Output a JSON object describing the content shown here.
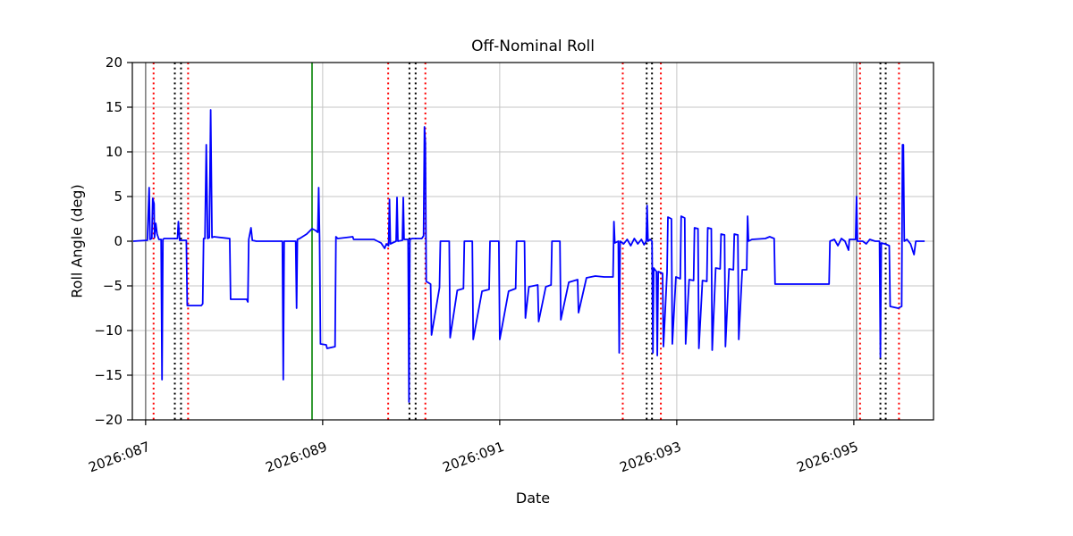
{
  "figure": {
    "title": "Off-Nominal Roll",
    "xlabel": "Date",
    "ylabel": "Roll Angle (deg)"
  },
  "chart_data": {
    "type": "line",
    "title": "Off-Nominal Roll",
    "xlabel": "Date",
    "ylabel": "Roll Angle (deg)",
    "x_unit": "year:day-of-year (2026, decimal days)",
    "xlim": [
      86.85,
      95.9
    ],
    "ylim": [
      -20,
      20
    ],
    "grid": true,
    "grid_color": "#c6c6c6",
    "xticks": [
      {
        "value": 87,
        "label": "2026:087"
      },
      {
        "value": 89,
        "label": "2026:089"
      },
      {
        "value": 91,
        "label": "2026:091"
      },
      {
        "value": 93,
        "label": "2026:093"
      },
      {
        "value": 95,
        "label": "2026:095"
      }
    ],
    "yticks": [
      {
        "value": 20,
        "label": "20"
      },
      {
        "value": 15,
        "label": "15"
      },
      {
        "value": 10,
        "label": "10"
      },
      {
        "value": 5,
        "label": "5"
      },
      {
        "value": 0,
        "label": "0"
      },
      {
        "value": -5,
        "label": "−5"
      },
      {
        "value": -10,
        "label": "−10"
      },
      {
        "value": -15,
        "label": "−15"
      },
      {
        "value": -20,
        "label": "−20"
      }
    ],
    "series": [
      {
        "name": "roll-angle",
        "color": "#0000ff",
        "width": 1.8,
        "points": [
          [
            86.86,
            0
          ],
          [
            87.02,
            0.1
          ],
          [
            87.04,
            6
          ],
          [
            87.05,
            0.2
          ],
          [
            87.07,
            0.3
          ],
          [
            87.08,
            4.8
          ],
          [
            87.095,
            4.2
          ],
          [
            87.1,
            0.4
          ],
          [
            87.115,
            2.0
          ],
          [
            87.13,
            0.8
          ],
          [
            87.15,
            0.2
          ],
          [
            87.175,
            0.2
          ],
          [
            87.185,
            -15.5
          ],
          [
            87.195,
            0.2
          ],
          [
            87.21,
            0.3
          ],
          [
            87.36,
            0.3
          ],
          [
            87.37,
            2.2
          ],
          [
            87.385,
            0.1
          ],
          [
            87.46,
            0.1
          ],
          [
            87.47,
            -7.2
          ],
          [
            87.63,
            -7.2
          ],
          [
            87.645,
            -7.0
          ],
          [
            87.655,
            0.3
          ],
          [
            87.67,
            0.3
          ],
          [
            87.685,
            10.8
          ],
          [
            87.7,
            0.3
          ],
          [
            87.72,
            0.4
          ],
          [
            87.735,
            14.7
          ],
          [
            87.75,
            0.4
          ],
          [
            87.77,
            0.5
          ],
          [
            87.95,
            0.3
          ],
          [
            87.96,
            -6.5
          ],
          [
            88.14,
            -6.5
          ],
          [
            88.155,
            -6.8
          ],
          [
            88.165,
            0.2
          ],
          [
            88.19,
            1.5
          ],
          [
            88.205,
            0.1
          ],
          [
            88.25,
            0.0
          ],
          [
            88.53,
            0.0
          ],
          [
            88.545,
            0.0
          ],
          [
            88.555,
            -15.5
          ],
          [
            88.565,
            0.0
          ],
          [
            88.6,
            0.0
          ],
          [
            88.695,
            0.0
          ],
          [
            88.705,
            -7.5
          ],
          [
            88.715,
            0.2
          ],
          [
            88.74,
            0.3
          ],
          [
            88.82,
            0.8
          ],
          [
            88.88,
            1.4
          ],
          [
            88.92,
            1.2
          ],
          [
            88.945,
            1.0
          ],
          [
            88.955,
            6.0
          ],
          [
            88.965,
            0.4
          ],
          [
            88.975,
            -11.5
          ],
          [
            89.04,
            -11.6
          ],
          [
            89.05,
            -12.0
          ],
          [
            89.14,
            -11.8
          ],
          [
            89.15,
            0.5
          ],
          [
            89.17,
            0.3
          ],
          [
            89.34,
            0.5
          ],
          [
            89.35,
            0.2
          ],
          [
            89.58,
            0.2
          ],
          [
            89.66,
            -0.2
          ],
          [
            89.7,
            -0.8
          ],
          [
            89.72,
            -0.3
          ],
          [
            89.745,
            -0.5
          ],
          [
            89.755,
            4.7
          ],
          [
            89.765,
            -0.3
          ],
          [
            89.83,
            0.0
          ],
          [
            89.84,
            4.9
          ],
          [
            89.85,
            0.0
          ],
          [
            89.9,
            0.1
          ],
          [
            89.91,
            4.9
          ],
          [
            89.92,
            0.2
          ],
          [
            89.965,
            0.2
          ],
          [
            89.975,
            -18.0
          ],
          [
            89.985,
            0.2
          ],
          [
            90.01,
            0.3
          ],
          [
            90.12,
            0.3
          ],
          [
            90.14,
            0.6
          ],
          [
            90.15,
            12.8
          ],
          [
            90.16,
            11.0
          ],
          [
            90.17,
            -4.5
          ],
          [
            90.22,
            -4.8
          ],
          [
            90.23,
            -10.5
          ],
          [
            90.32,
            -5.2
          ],
          [
            90.33,
            0.0
          ],
          [
            90.43,
            0.0
          ],
          [
            90.44,
            -10.8
          ],
          [
            90.52,
            -5.5
          ],
          [
            90.59,
            -5.3
          ],
          [
            90.6,
            0.0
          ],
          [
            90.69,
            0.0
          ],
          [
            90.7,
            -11.0
          ],
          [
            90.8,
            -5.6
          ],
          [
            90.88,
            -5.4
          ],
          [
            90.89,
            0.0
          ],
          [
            90.99,
            0.0
          ],
          [
            91.0,
            -11.0
          ],
          [
            91.1,
            -5.6
          ],
          [
            91.18,
            -5.3
          ],
          [
            91.19,
            0.0
          ],
          [
            91.28,
            0.0
          ],
          [
            91.29,
            -8.6
          ],
          [
            91.33,
            -5.1
          ],
          [
            91.43,
            -4.9
          ],
          [
            91.44,
            -9.0
          ],
          [
            91.52,
            -5.1
          ],
          [
            91.58,
            -4.9
          ],
          [
            91.59,
            0.0
          ],
          [
            91.68,
            0.0
          ],
          [
            91.69,
            -8.8
          ],
          [
            91.78,
            -4.6
          ],
          [
            91.88,
            -4.3
          ],
          [
            91.89,
            -8.0
          ],
          [
            91.98,
            -4.1
          ],
          [
            92.08,
            -3.9
          ],
          [
            92.18,
            -4.0
          ],
          [
            92.28,
            -4.0
          ],
          [
            92.29,
            2.2
          ],
          [
            92.3,
            -0.2
          ],
          [
            92.34,
            0.0
          ],
          [
            92.35,
            -12.5
          ],
          [
            92.36,
            0.0
          ],
          [
            92.4,
            -0.3
          ],
          [
            92.44,
            0.2
          ],
          [
            92.48,
            -0.5
          ],
          [
            92.52,
            0.3
          ],
          [
            92.56,
            -0.3
          ],
          [
            92.6,
            0.2
          ],
          [
            92.63,
            -0.4
          ],
          [
            92.655,
            0.0
          ],
          [
            92.665,
            4.0
          ],
          [
            92.675,
            0.0
          ],
          [
            92.7,
            0.2
          ],
          [
            92.72,
            0.0
          ],
          [
            92.73,
            -12.5
          ],
          [
            92.74,
            -3.0
          ],
          [
            92.77,
            -3.4
          ],
          [
            92.78,
            -12.8
          ],
          [
            92.79,
            -3.4
          ],
          [
            92.84,
            -3.6
          ],
          [
            92.85,
            -11.8
          ],
          [
            92.89,
            -3.5
          ],
          [
            92.9,
            2.7
          ],
          [
            92.94,
            2.5
          ],
          [
            92.95,
            -11.5
          ],
          [
            92.99,
            -4.0
          ],
          [
            93.04,
            -4.2
          ],
          [
            93.05,
            2.8
          ],
          [
            93.09,
            2.6
          ],
          [
            93.1,
            -11.5
          ],
          [
            93.14,
            -4.3
          ],
          [
            93.19,
            -4.4
          ],
          [
            93.2,
            1.5
          ],
          [
            93.24,
            1.4
          ],
          [
            93.25,
            -12.0
          ],
          [
            93.29,
            -4.4
          ],
          [
            93.34,
            -4.5
          ],
          [
            93.35,
            1.5
          ],
          [
            93.39,
            1.4
          ],
          [
            93.4,
            -12.2
          ],
          [
            93.44,
            -3.0
          ],
          [
            93.49,
            -3.1
          ],
          [
            93.5,
            0.8
          ],
          [
            93.54,
            0.7
          ],
          [
            93.55,
            -11.8
          ],
          [
            93.59,
            -3.1
          ],
          [
            93.64,
            -3.2
          ],
          [
            93.65,
            0.8
          ],
          [
            93.69,
            0.7
          ],
          [
            93.7,
            -11.0
          ],
          [
            93.74,
            -3.2
          ],
          [
            93.79,
            -3.2
          ],
          [
            93.8,
            2.8
          ],
          [
            93.81,
            0.0
          ],
          [
            93.85,
            0.2
          ],
          [
            94.0,
            0.3
          ],
          [
            94.05,
            0.5
          ],
          [
            94.1,
            0.3
          ],
          [
            94.11,
            -4.8
          ],
          [
            94.72,
            -4.8
          ],
          [
            94.73,
            0.0
          ],
          [
            94.78,
            0.2
          ],
          [
            94.82,
            -0.5
          ],
          [
            94.86,
            0.3
          ],
          [
            94.9,
            0.0
          ],
          [
            94.94,
            -1.0
          ],
          [
            94.95,
            0.2
          ],
          [
            95.02,
            0.2
          ],
          [
            95.03,
            5.0
          ],
          [
            95.04,
            0.0
          ],
          [
            95.1,
            0.0
          ],
          [
            95.14,
            -0.3
          ],
          [
            95.18,
            0.2
          ],
          [
            95.24,
            0.0
          ],
          [
            95.29,
            0.0
          ],
          [
            95.3,
            -13.0
          ],
          [
            95.31,
            -0.2
          ],
          [
            95.35,
            -0.3
          ],
          [
            95.4,
            -0.5
          ],
          [
            95.41,
            -7.3
          ],
          [
            95.5,
            -7.5
          ],
          [
            95.54,
            -7.3
          ],
          [
            95.55,
            10.8
          ],
          [
            95.56,
            10.8
          ],
          [
            95.57,
            0.0
          ],
          [
            95.6,
            0.2
          ],
          [
            95.64,
            -0.3
          ],
          [
            95.68,
            -1.5
          ],
          [
            95.7,
            0.0
          ],
          [
            95.8,
            0.0
          ]
        ]
      }
    ],
    "vlines": [
      {
        "x": 87.0,
        "color": "#808080",
        "style": "solid"
      },
      {
        "x": 87.09,
        "color": "#ff0000",
        "style": "dotted"
      },
      {
        "x": 87.33,
        "color": "#000000",
        "style": "dotted"
      },
      {
        "x": 87.4,
        "color": "#000000",
        "style": "dotted"
      },
      {
        "x": 87.48,
        "color": "#ff0000",
        "style": "dotted"
      },
      {
        "x": 88.88,
        "color": "#008000",
        "style": "solid"
      },
      {
        "x": 89.74,
        "color": "#ff0000",
        "style": "dotted"
      },
      {
        "x": 89.98,
        "color": "#000000",
        "style": "dotted"
      },
      {
        "x": 90.05,
        "color": "#000000",
        "style": "dotted"
      },
      {
        "x": 90.16,
        "color": "#ff0000",
        "style": "dotted"
      },
      {
        "x": 92.39,
        "color": "#ff0000",
        "style": "dotted"
      },
      {
        "x": 92.66,
        "color": "#000000",
        "style": "dotted"
      },
      {
        "x": 92.72,
        "color": "#000000",
        "style": "dotted"
      },
      {
        "x": 92.82,
        "color": "#ff0000",
        "style": "dotted"
      },
      {
        "x": 95.03,
        "color": "#808080",
        "style": "solid"
      },
      {
        "x": 95.07,
        "color": "#ff0000",
        "style": "dotted"
      },
      {
        "x": 95.3,
        "color": "#000000",
        "style": "dotted"
      },
      {
        "x": 95.36,
        "color": "#000000",
        "style": "dotted"
      },
      {
        "x": 95.51,
        "color": "#ff0000",
        "style": "dotted"
      }
    ],
    "legend_position": "none"
  }
}
